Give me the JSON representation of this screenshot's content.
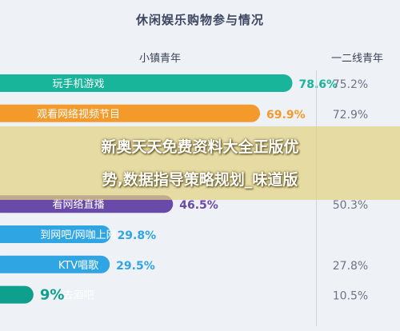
{
  "chart_data": {
    "type": "bar",
    "title": "休闲娱乐购物参与情况",
    "column_headers": [
      "小镇青年",
      "一二线青年"
    ],
    "categories": [
      "玩手机游戏",
      "观看网络视频节目",
      "",
      "",
      "看网络直播",
      "到网吧/网咖上网",
      "KTV唱歌",
      "去酒吧"
    ],
    "series": [
      {
        "name": "小镇青年",
        "values": [
          78.6,
          69.9,
          null,
          null,
          46.5,
          29.8,
          29.5,
          9
        ],
        "labels": [
          "78.6%",
          "69.9%",
          "",
          "",
          "46.5%",
          "29.8%",
          "29.5%",
          "9%"
        ]
      },
      {
        "name": "一二线青年",
        "values": [
          75.2,
          72.9,
          null,
          null,
          50.3,
          null,
          27.8,
          10.5
        ],
        "labels": [
          "75.2%",
          "72.9%",
          "",
          "",
          "50.3%",
          "",
          "27.8%",
          "10.5%"
        ]
      }
    ],
    "colors": [
      "#18b59b",
      "#f39a2a",
      "#e4584d",
      "#e14b6f",
      "#6a4aa8",
      "#2fa5e3",
      "#2fa5e3",
      "#0ea08c"
    ]
  },
  "overlay": {
    "line1": "新奥天天免费资料大全正版优",
    "line2": "势,数据指导策略规划_味道版"
  }
}
